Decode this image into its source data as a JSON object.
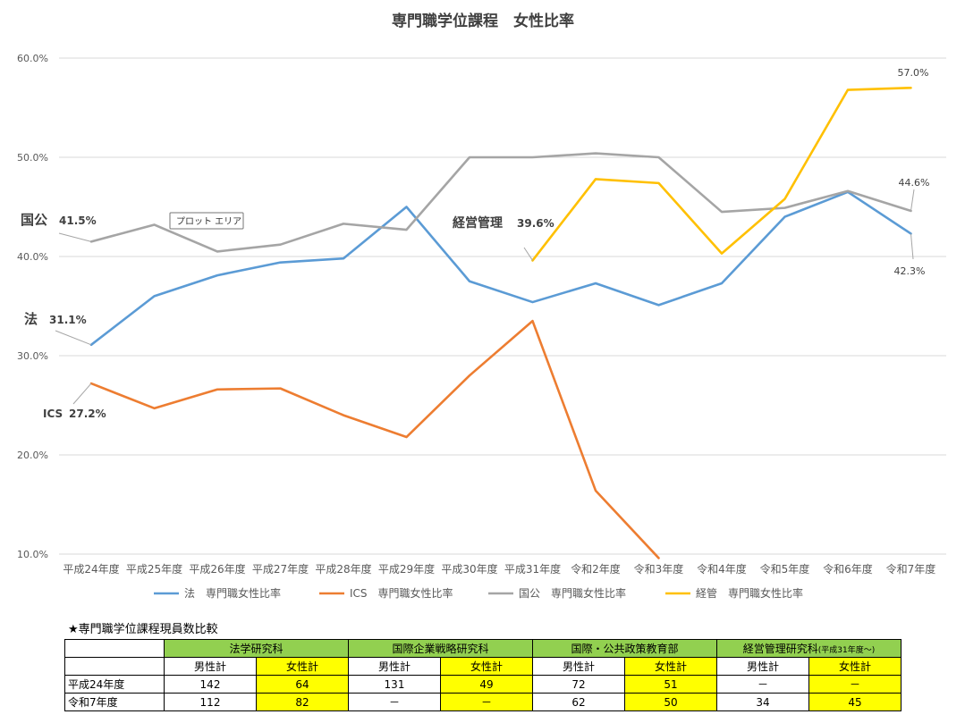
{
  "chart_data": {
    "type": "line",
    "title": "専門職学位課程　女性比率",
    "categories": [
      "平成24年度",
      "平成25年度",
      "平成26年度",
      "平成27年度",
      "平成28年度",
      "平成29年度",
      "平成30年度",
      "平成31年度",
      "令和2年度",
      "令和3年度",
      "令和4年度",
      "令和5年度",
      "令和6年度",
      "令和7年度"
    ],
    "ylim": [
      10,
      60
    ],
    "yticks": [
      "10.0%",
      "20.0%",
      "30.0%",
      "40.0%",
      "50.0%",
      "60.0%"
    ],
    "grid": true,
    "legend_position": "bottom",
    "series": [
      {
        "name": "法　専門職女性比率",
        "color": "#5b9bd5",
        "values": [
          31.1,
          36.0,
          38.1,
          39.4,
          39.8,
          45.0,
          37.5,
          35.4,
          37.3,
          35.1,
          37.3,
          44.0,
          46.5,
          42.3
        ]
      },
      {
        "name": "ICS　専門職女性比率",
        "color": "#ed7d31",
        "values": [
          27.2,
          24.7,
          26.6,
          26.7,
          24.0,
          21.8,
          28.0,
          33.5,
          16.4,
          9.6,
          null,
          null,
          null,
          null
        ]
      },
      {
        "name": "国公　専門職女性比率",
        "color": "#a5a5a5",
        "values": [
          41.5,
          43.2,
          40.5,
          41.2,
          43.3,
          42.7,
          50.0,
          50.0,
          50.4,
          50.0,
          44.5,
          44.9,
          46.6,
          44.6
        ]
      },
      {
        "name": "経管　専門職女性比率",
        "color": "#ffc000",
        "values": [
          null,
          null,
          null,
          null,
          null,
          null,
          null,
          39.6,
          47.8,
          47.4,
          40.3,
          45.8,
          56.8,
          57.0
        ]
      }
    ],
    "annotations": [
      {
        "label": "国公",
        "value": "41.5%"
      },
      {
        "label": "法",
        "value": "31.1%"
      },
      {
        "label": "ICS",
        "value": "27.2%"
      },
      {
        "label": "経営管理",
        "value": "39.6%"
      },
      {
        "label": "",
        "value": "57.0%"
      },
      {
        "label": "",
        "value": "44.6%"
      },
      {
        "label": "",
        "value": "42.3%"
      }
    ],
    "tooltip": "プロット エリア"
  },
  "table": {
    "title": "★専門職学位課程現員数比較",
    "groups": [
      {
        "name": "法学研究科",
        "note": ""
      },
      {
        "name": "国際企業戦略研究科",
        "note": ""
      },
      {
        "name": "国際・公共政策教育部",
        "note": ""
      },
      {
        "name": "経営管理研究科",
        "note": "(平成31年度～)"
      }
    ],
    "subheaders": [
      "男性計",
      "女性計"
    ],
    "rows": [
      {
        "label": "平成24年度",
        "values": [
          "142",
          "64",
          "131",
          "49",
          "72",
          "51",
          "－",
          "－"
        ]
      },
      {
        "label": "令和7年度",
        "values": [
          "112",
          "82",
          "－",
          "－",
          "62",
          "50",
          "34",
          "45"
        ]
      }
    ]
  }
}
